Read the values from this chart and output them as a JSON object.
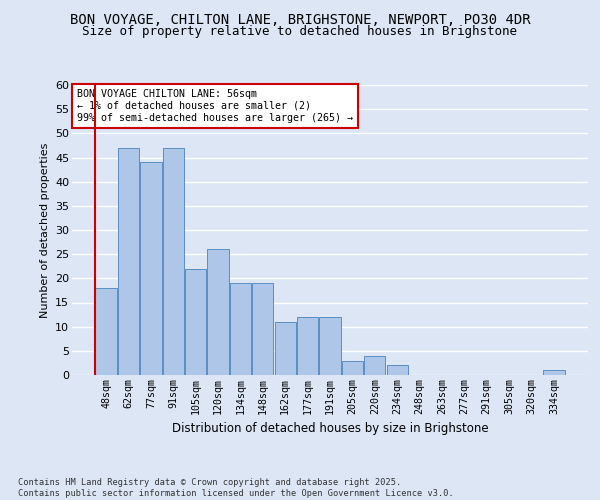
{
  "title1": "BON VOYAGE, CHILTON LANE, BRIGHSTONE, NEWPORT, PO30 4DR",
  "title2": "Size of property relative to detached houses in Brighstone",
  "xlabel": "Distribution of detached houses by size in Brighstone",
  "ylabel": "Number of detached properties",
  "categories": [
    "48sqm",
    "62sqm",
    "77sqm",
    "91sqm",
    "105sqm",
    "120sqm",
    "134sqm",
    "148sqm",
    "162sqm",
    "177sqm",
    "191sqm",
    "205sqm",
    "220sqm",
    "234sqm",
    "248sqm",
    "263sqm",
    "277sqm",
    "291sqm",
    "305sqm",
    "320sqm",
    "334sqm"
  ],
  "values": [
    18,
    47,
    44,
    47,
    22,
    26,
    19,
    19,
    11,
    12,
    12,
    3,
    4,
    2,
    0,
    0,
    0,
    0,
    0,
    0,
    1
  ],
  "bar_color": "#aec6e8",
  "bar_edge_color": "#5a8fc2",
  "background_color": "#dce6f5",
  "grid_color": "#ffffff",
  "annotation_box_text": "BON VOYAGE CHILTON LANE: 56sqm\n← 1% of detached houses are smaller (2)\n99% of semi-detached houses are larger (265) →",
  "annotation_box_color": "#ffffff",
  "annotation_box_edge": "#cc0000",
  "vline_color": "#cc0000",
  "ylim": [
    0,
    60
  ],
  "yticks": [
    0,
    5,
    10,
    15,
    20,
    25,
    30,
    35,
    40,
    45,
    50,
    55,
    60
  ],
  "footer_text": "Contains HM Land Registry data © Crown copyright and database right 2025.\nContains public sector information licensed under the Open Government Licence v3.0.",
  "title_fontsize": 10,
  "subtitle_fontsize": 9
}
